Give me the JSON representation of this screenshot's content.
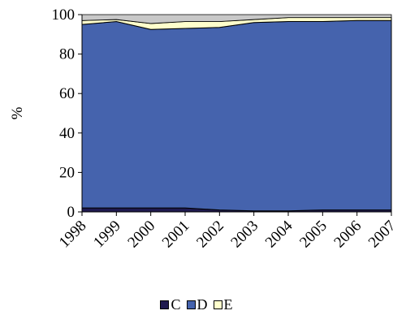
{
  "chart_data": {
    "type": "area",
    "stacked": true,
    "categories": [
      "1998",
      "1999",
      "2000",
      "2001",
      "2002",
      "2003",
      "2004",
      "2005",
      "2006",
      "2007"
    ],
    "series": [
      {
        "name": "C",
        "color": "#1f1a4f",
        "values": [
          2,
          2,
          2,
          2,
          1,
          0.5,
          0.5,
          1,
          1,
          1
        ]
      },
      {
        "name": "D",
        "color": "#4563ad",
        "values": [
          93,
          94.5,
          90.5,
          91,
          92.5,
          95.5,
          96,
          95.5,
          96,
          96
        ]
      },
      {
        "name": "E",
        "color": "#ffffcc",
        "values": [
          2,
          1,
          3,
          3.5,
          3,
          1.5,
          2,
          2,
          1.5,
          1.5
        ]
      }
    ],
    "ylabel": "%",
    "xlabel": "",
    "title": "",
    "ylim": [
      0,
      100
    ],
    "yticks": [
      0,
      20,
      40,
      60,
      80,
      100
    ],
    "grid": false,
    "legend_position": "bottom",
    "axis_color": "#000000"
  }
}
